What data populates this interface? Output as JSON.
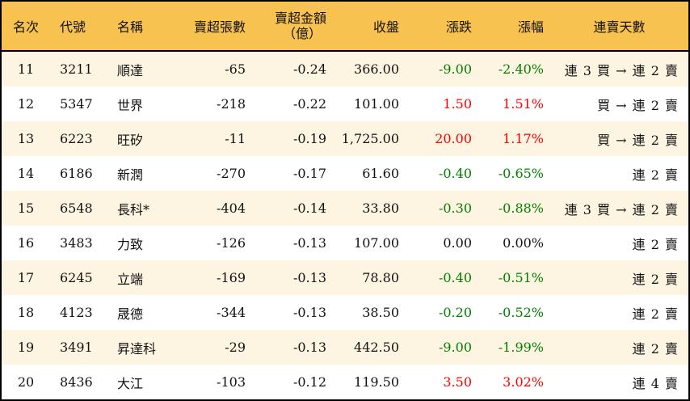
{
  "headers": {
    "rank": "名次",
    "code": "代號",
    "name": "名稱",
    "net_sell_lots": "賣超張數",
    "net_sell_amount_line1": "賣超金額",
    "net_sell_amount_line2": "（億）",
    "close": "收盤",
    "change": "漲跌",
    "change_pct": "漲幅",
    "streak": "連賣天數"
  },
  "colors": {
    "header_bg": "#F8C250",
    "alt_row_bg": "#FDF5E2",
    "up": "#ff0000",
    "down": "#008000"
  },
  "rows": [
    {
      "rank": "11",
      "code": "3211",
      "name": "順達",
      "lots": "-65",
      "amount": "-0.24",
      "close": "366.00",
      "change": "-9.00",
      "pct": "-2.40%",
      "dir": "down",
      "streak": "連 3 買 → 連 2 賣"
    },
    {
      "rank": "12",
      "code": "5347",
      "name": "世界",
      "lots": "-218",
      "amount": "-0.22",
      "close": "101.00",
      "change": "1.50",
      "pct": "1.51%",
      "dir": "up",
      "streak": "買 → 連 2 賣"
    },
    {
      "rank": "13",
      "code": "6223",
      "name": "旺矽",
      "lots": "-11",
      "amount": "-0.19",
      "close": "1,725.00",
      "change": "20.00",
      "pct": "1.17%",
      "dir": "up",
      "streak": "買 → 連 2 賣"
    },
    {
      "rank": "14",
      "code": "6186",
      "name": "新潤",
      "lots": "-270",
      "amount": "-0.17",
      "close": "61.60",
      "change": "-0.40",
      "pct": "-0.65%",
      "dir": "down",
      "streak": "連 2 賣"
    },
    {
      "rank": "15",
      "code": "6548",
      "name": "長科*",
      "lots": "-404",
      "amount": "-0.14",
      "close": "33.80",
      "change": "-0.30",
      "pct": "-0.88%",
      "dir": "down",
      "streak": "連 3 買 → 連 2 賣"
    },
    {
      "rank": "16",
      "code": "3483",
      "name": "力致",
      "lots": "-126",
      "amount": "-0.13",
      "close": "107.00",
      "change": "0.00",
      "pct": "0.00%",
      "dir": "flat",
      "streak": "連 2 賣"
    },
    {
      "rank": "17",
      "code": "6245",
      "name": "立端",
      "lots": "-169",
      "amount": "-0.13",
      "close": "78.80",
      "change": "-0.40",
      "pct": "-0.51%",
      "dir": "down",
      "streak": "連 2 賣"
    },
    {
      "rank": "18",
      "code": "4123",
      "name": "晟德",
      "lots": "-344",
      "amount": "-0.13",
      "close": "38.50",
      "change": "-0.20",
      "pct": "-0.52%",
      "dir": "down",
      "streak": "連 2 賣"
    },
    {
      "rank": "19",
      "code": "3491",
      "name": "昇達科",
      "lots": "-29",
      "amount": "-0.13",
      "close": "442.50",
      "change": "-9.00",
      "pct": "-1.99%",
      "dir": "down",
      "streak": "連 2 賣"
    },
    {
      "rank": "20",
      "code": "8436",
      "name": "大江",
      "lots": "-103",
      "amount": "-0.12",
      "close": "119.50",
      "change": "3.50",
      "pct": "3.02%",
      "dir": "up",
      "streak": "連 4 賣"
    }
  ]
}
